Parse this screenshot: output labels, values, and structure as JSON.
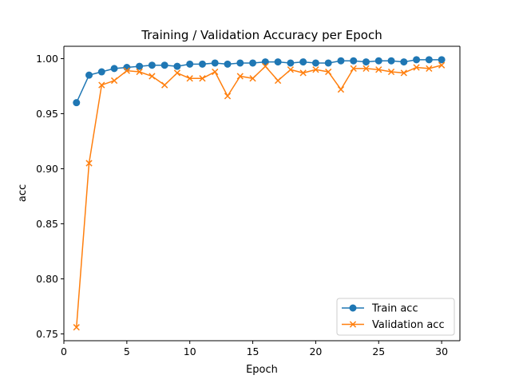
{
  "chart_data": {
    "type": "line",
    "title": "Training / Validation Accuracy per Epoch",
    "xlabel": "Epoch",
    "ylabel": "acc",
    "xlim": [
      0.0,
      31.45
    ],
    "ylim": [
      0.7438,
      1.0112
    ],
    "x_ticks": [
      0,
      5,
      10,
      15,
      20,
      25,
      30
    ],
    "x_tick_labels": [
      "0",
      "5",
      "10",
      "15",
      "20",
      "25",
      "30"
    ],
    "y_ticks": [
      0.75,
      0.8,
      0.85,
      0.9,
      0.95,
      1.0
    ],
    "y_tick_labels": [
      "0.75",
      "0.80",
      "0.85",
      "0.90",
      "0.95",
      "1.00"
    ],
    "grid": false,
    "legend_position": "lower-right",
    "x": [
      1,
      2,
      3,
      4,
      5,
      6,
      7,
      8,
      9,
      10,
      11,
      12,
      13,
      14,
      15,
      16,
      17,
      18,
      19,
      20,
      21,
      22,
      23,
      24,
      25,
      26,
      27,
      28,
      29,
      30
    ],
    "series": [
      {
        "name": "Train acc",
        "color": "#1f77b4",
        "marker": "circle",
        "values": [
          0.96,
          0.985,
          0.988,
          0.991,
          0.992,
          0.993,
          0.994,
          0.994,
          0.993,
          0.995,
          0.995,
          0.996,
          0.995,
          0.996,
          0.996,
          0.997,
          0.997,
          0.996,
          0.997,
          0.996,
          0.996,
          0.998,
          0.998,
          0.997,
          0.998,
          0.998,
          0.997,
          0.999,
          0.999,
          0.999
        ]
      },
      {
        "name": "Validation acc",
        "color": "#ff7f0e",
        "marker": "x",
        "values": [
          0.756,
          0.905,
          0.976,
          0.98,
          0.989,
          0.988,
          0.984,
          0.976,
          0.987,
          0.982,
          0.982,
          0.988,
          0.966,
          0.984,
          0.982,
          0.993,
          0.98,
          0.99,
          0.987,
          0.99,
          0.988,
          0.972,
          0.991,
          0.991,
          0.99,
          0.988,
          0.987,
          0.992,
          0.991,
          0.994
        ]
      }
    ]
  }
}
